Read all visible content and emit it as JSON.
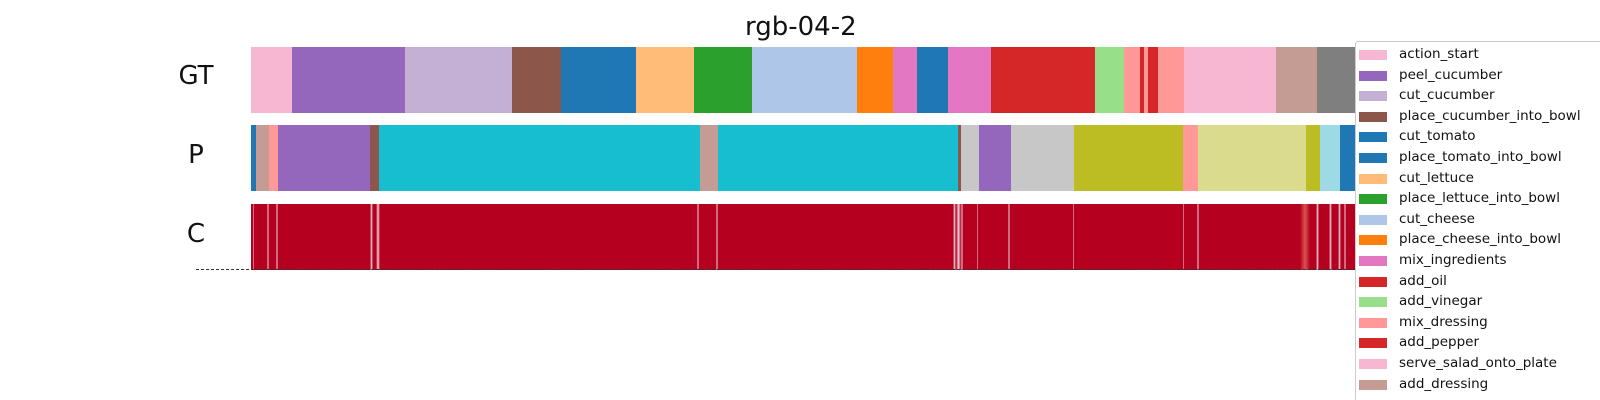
{
  "chart_data": {
    "type": "segmentation",
    "title": "rgb-04-2",
    "x_range": [
      0,
      1000
    ],
    "rows": [
      {
        "label": "GT",
        "segments": [
          {
            "start": 0,
            "end": 36,
            "color": "#f7b6d2"
          },
          {
            "start": 36,
            "end": 136,
            "color": "#9467bd"
          },
          {
            "start": 136,
            "end": 231,
            "color": "#c5b0d5"
          },
          {
            "start": 231,
            "end": 274,
            "color": "#8c564b"
          },
          {
            "start": 274,
            "end": 341,
            "color": "#1f77b4"
          },
          {
            "start": 341,
            "end": 392,
            "color": "#ffbb78"
          },
          {
            "start": 392,
            "end": 443,
            "color": "#2ca02c"
          },
          {
            "start": 443,
            "end": 536,
            "color": "#aec7e8"
          },
          {
            "start": 536,
            "end": 568,
            "color": "#ff7f0e"
          },
          {
            "start": 568,
            "end": 589,
            "color": "#e377c2"
          },
          {
            "start": 589,
            "end": 617,
            "color": "#1f77b4"
          },
          {
            "start": 617,
            "end": 655,
            "color": "#e377c2"
          },
          {
            "start": 655,
            "end": 747,
            "color": "#d62728"
          },
          {
            "start": 747,
            "end": 773,
            "color": "#98df8a"
          },
          {
            "start": 773,
            "end": 787,
            "color": "#ff9896"
          },
          {
            "start": 787,
            "end": 790,
            "color": "#d62728"
          },
          {
            "start": 790,
            "end": 794,
            "color": "#ff9896"
          },
          {
            "start": 794,
            "end": 803,
            "color": "#d62728"
          },
          {
            "start": 803,
            "end": 826,
            "color": "#ff9896"
          },
          {
            "start": 826,
            "end": 907,
            "color": "#f7b6d2"
          },
          {
            "start": 907,
            "end": 943,
            "color": "#c49c94"
          },
          {
            "start": 943,
            "end": 983,
            "color": "#7f7f7f"
          },
          {
            "start": 983,
            "end": 1000,
            "color": "#1f77b4"
          }
        ]
      },
      {
        "label": "P",
        "segments": [
          {
            "start": 0,
            "end": 4,
            "color": "#1f77b4"
          },
          {
            "start": 4,
            "end": 16,
            "color": "#c49c94"
          },
          {
            "start": 16,
            "end": 24,
            "color": "#ff9896"
          },
          {
            "start": 24,
            "end": 105,
            "color": "#9467bd"
          },
          {
            "start": 105,
            "end": 113,
            "color": "#8c564b"
          },
          {
            "start": 113,
            "end": 397,
            "color": "#17becf"
          },
          {
            "start": 397,
            "end": 413,
            "color": "#c49c94"
          },
          {
            "start": 413,
            "end": 626,
            "color": "#17becf"
          },
          {
            "start": 626,
            "end": 628,
            "color": "#8c564b"
          },
          {
            "start": 628,
            "end": 644,
            "color": "#c7c7c7"
          },
          {
            "start": 644,
            "end": 673,
            "color": "#9467bd"
          },
          {
            "start": 673,
            "end": 728,
            "color": "#c7c7c7"
          },
          {
            "start": 728,
            "end": 825,
            "color": "#bcbd22"
          },
          {
            "start": 825,
            "end": 838,
            "color": "#ff9896"
          },
          {
            "start": 838,
            "end": 934,
            "color": "#dbdb8d"
          },
          {
            "start": 934,
            "end": 946,
            "color": "#bcbd22"
          },
          {
            "start": 946,
            "end": 964,
            "color": "#9edae5"
          },
          {
            "start": 964,
            "end": 1000,
            "color": "#1f77b4"
          }
        ]
      },
      {
        "label": "C",
        "base_color": "#b5001f",
        "low_confidence_marks": [
          {
            "at": 2,
            "width": 1.5
          },
          {
            "at": 15,
            "width": 1.5
          },
          {
            "at": 23,
            "width": 1.5
          },
          {
            "at": 107,
            "width": 3
          },
          {
            "at": 112,
            "width": 4
          },
          {
            "at": 396,
            "width": 2
          },
          {
            "at": 412,
            "width": 2
          },
          {
            "at": 623,
            "width": 3
          },
          {
            "at": 626,
            "width": 5
          },
          {
            "at": 629,
            "width": 2
          },
          {
            "at": 643,
            "width": 1.5
          },
          {
            "at": 671,
            "width": 1.5
          },
          {
            "at": 728,
            "width": 1.5
          },
          {
            "at": 825,
            "width": 1.5
          },
          {
            "at": 838,
            "width": 1.5
          },
          {
            "at": 933,
            "width": 10
          },
          {
            "at": 944,
            "width": 3
          },
          {
            "at": 955,
            "width": 3
          },
          {
            "at": 963,
            "width": 3
          },
          {
            "at": 968,
            "width": 2
          }
        ]
      }
    ],
    "legend": [
      {
        "label": "action_start",
        "color": "#f7b6d2"
      },
      {
        "label": "peel_cucumber",
        "color": "#9467bd"
      },
      {
        "label": "cut_cucumber",
        "color": "#c5b0d5"
      },
      {
        "label": "place_cucumber_into_bowl",
        "color": "#8c564b"
      },
      {
        "label": "cut_tomato",
        "color": "#1f77b4"
      },
      {
        "label": "place_tomato_into_bowl",
        "color": "#1f77b4"
      },
      {
        "label": "cut_lettuce",
        "color": "#ffbb78"
      },
      {
        "label": "place_lettuce_into_bowl",
        "color": "#2ca02c"
      },
      {
        "label": "cut_cheese",
        "color": "#aec7e8"
      },
      {
        "label": "place_cheese_into_bowl",
        "color": "#ff7f0e"
      },
      {
        "label": "mix_ingredients",
        "color": "#e377c2"
      },
      {
        "label": "add_oil",
        "color": "#d62728"
      },
      {
        "label": "add_vinegar",
        "color": "#98df8a"
      },
      {
        "label": "mix_dressing",
        "color": "#ff9896"
      },
      {
        "label": "add_pepper",
        "color": "#d62728"
      },
      {
        "label": "serve_salad_onto_plate",
        "color": "#f7b6d2"
      },
      {
        "label": "add_dressing",
        "color": "#c49c94"
      }
    ]
  }
}
